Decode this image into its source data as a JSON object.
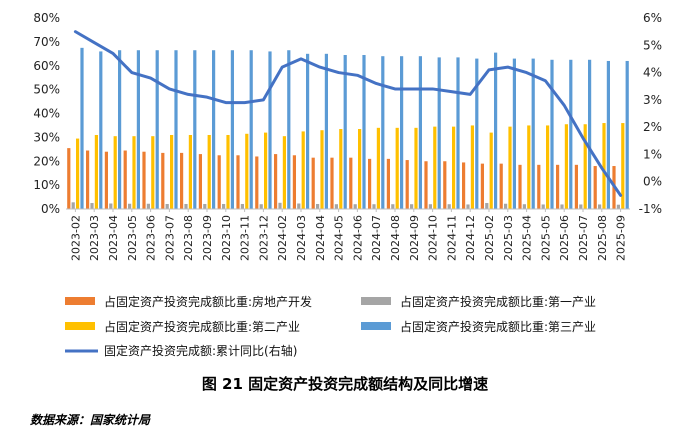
{
  "chart_data": {
    "type": "bar",
    "categories": [
      "2023-02",
      "2023-03",
      "2023-04",
      "2023-05",
      "2023-06",
      "2023-07",
      "2023-08",
      "2023-09",
      "2023-10",
      "2023-11",
      "2023-12",
      "2024-02",
      "2024-03",
      "2024-04",
      "2024-05",
      "2024-06",
      "2024-07",
      "2024-08",
      "2024-09",
      "2024-10",
      "2024-11",
      "2024-12",
      "2025-02",
      "2025-03",
      "2025-04",
      "2025-05",
      "2025-06",
      "2025-07",
      "2025-08",
      "2025-09"
    ],
    "left_axis": {
      "ylim": [
        0,
        80
      ],
      "ticks": [
        "0%",
        "10%",
        "20%",
        "30%",
        "40%",
        "50%",
        "60%",
        "70%",
        "80%"
      ],
      "tick_values": [
        0,
        10,
        20,
        30,
        40,
        50,
        60,
        70,
        80
      ]
    },
    "right_axis": {
      "ylim": [
        -1,
        6
      ],
      "ticks": [
        "-1%",
        "0%",
        "1%",
        "2%",
        "3%",
        "4%",
        "5%",
        "6%"
      ],
      "tick_values": [
        -1,
        0,
        1,
        2,
        3,
        4,
        5,
        6
      ]
    },
    "series": [
      {
        "name": "占固定资产投资完成额比重:房地产开发",
        "type": "bar",
        "axis": "left",
        "color": "#ED7D31",
        "values": [
          25.5,
          24.5,
          24.0,
          24.5,
          24.0,
          23.5,
          23.5,
          23.0,
          22.5,
          22.5,
          22.0,
          23.0,
          22.5,
          21.5,
          21.5,
          21.5,
          21.0,
          21.0,
          20.5,
          20.0,
          20.0,
          19.5,
          19.0,
          19.0,
          18.5,
          18.5,
          18.5,
          18.5,
          18.0,
          18.0
        ]
      },
      {
        "name": "占固定资产投资完成额比重:第一产业",
        "type": "bar",
        "axis": "left",
        "color": "#A5A5A5",
        "values": [
          2.8,
          2.5,
          2.3,
          2.2,
          2.2,
          2.1,
          2.1,
          2.1,
          2.1,
          2.1,
          2.0,
          2.6,
          2.3,
          2.1,
          2.0,
          2.0,
          2.0,
          2.0,
          2.0,
          2.0,
          2.0,
          1.9,
          2.5,
          2.2,
          2.0,
          1.9,
          1.9,
          1.9,
          1.9,
          1.8
        ]
      },
      {
        "name": "占固定资产投资完成额比重:第二产业",
        "type": "bar",
        "axis": "left",
        "color": "#FFC000",
        "values": [
          29.5,
          31.0,
          30.5,
          30.5,
          30.5,
          31.0,
          31.0,
          31.0,
          31.0,
          31.5,
          32.0,
          30.5,
          32.5,
          33.0,
          33.5,
          33.5,
          34.0,
          34.0,
          34.0,
          34.5,
          34.5,
          35.0,
          32.0,
          34.5,
          35.0,
          35.0,
          35.5,
          35.5,
          36.0,
          36.0
        ]
      },
      {
        "name": "占固定资产投资完成额比重:第三产业",
        "type": "bar",
        "axis": "left",
        "color": "#5B9BD5",
        "values": [
          67.5,
          66.0,
          66.5,
          66.5,
          66.5,
          66.5,
          66.5,
          66.5,
          66.5,
          66.5,
          66.0,
          66.5,
          65.0,
          65.0,
          64.5,
          64.5,
          64.0,
          64.0,
          64.0,
          63.5,
          63.5,
          63.0,
          65.5,
          63.0,
          63.0,
          62.5,
          62.5,
          62.5,
          62.0,
          62.0
        ]
      },
      {
        "name": "固定资产投资完成额:累计同比(右轴)",
        "type": "line",
        "axis": "right",
        "color": "#4472C4",
        "values": [
          5.5,
          5.1,
          4.7,
          4.0,
          3.8,
          3.4,
          3.2,
          3.1,
          2.9,
          2.9,
          3.0,
          4.2,
          4.5,
          4.2,
          4.0,
          3.9,
          3.6,
          3.4,
          3.4,
          3.4,
          3.3,
          3.2,
          4.1,
          4.2,
          4.0,
          3.7,
          2.8,
          1.6,
          0.5,
          -0.5
        ]
      }
    ],
    "legend_placement": "bottom",
    "grid": false
  },
  "caption": "图 21  固定资产投资完成额结构及同比增速",
  "source": "数据来源：国家统计局"
}
